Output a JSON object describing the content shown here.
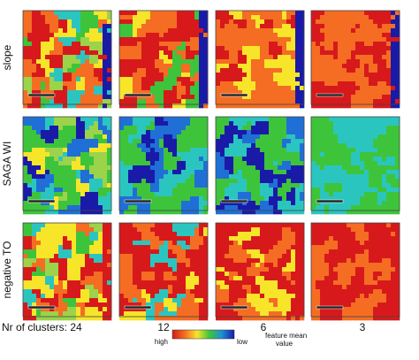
{
  "rows": [
    "slope",
    "SAGA WI",
    "negative TO"
  ],
  "columns": [
    "Nr of clusters: 24",
    "12",
    "6",
    "3"
  ],
  "legend": {
    "high": "high",
    "low": "low",
    "title": "feature mean value"
  }
}
